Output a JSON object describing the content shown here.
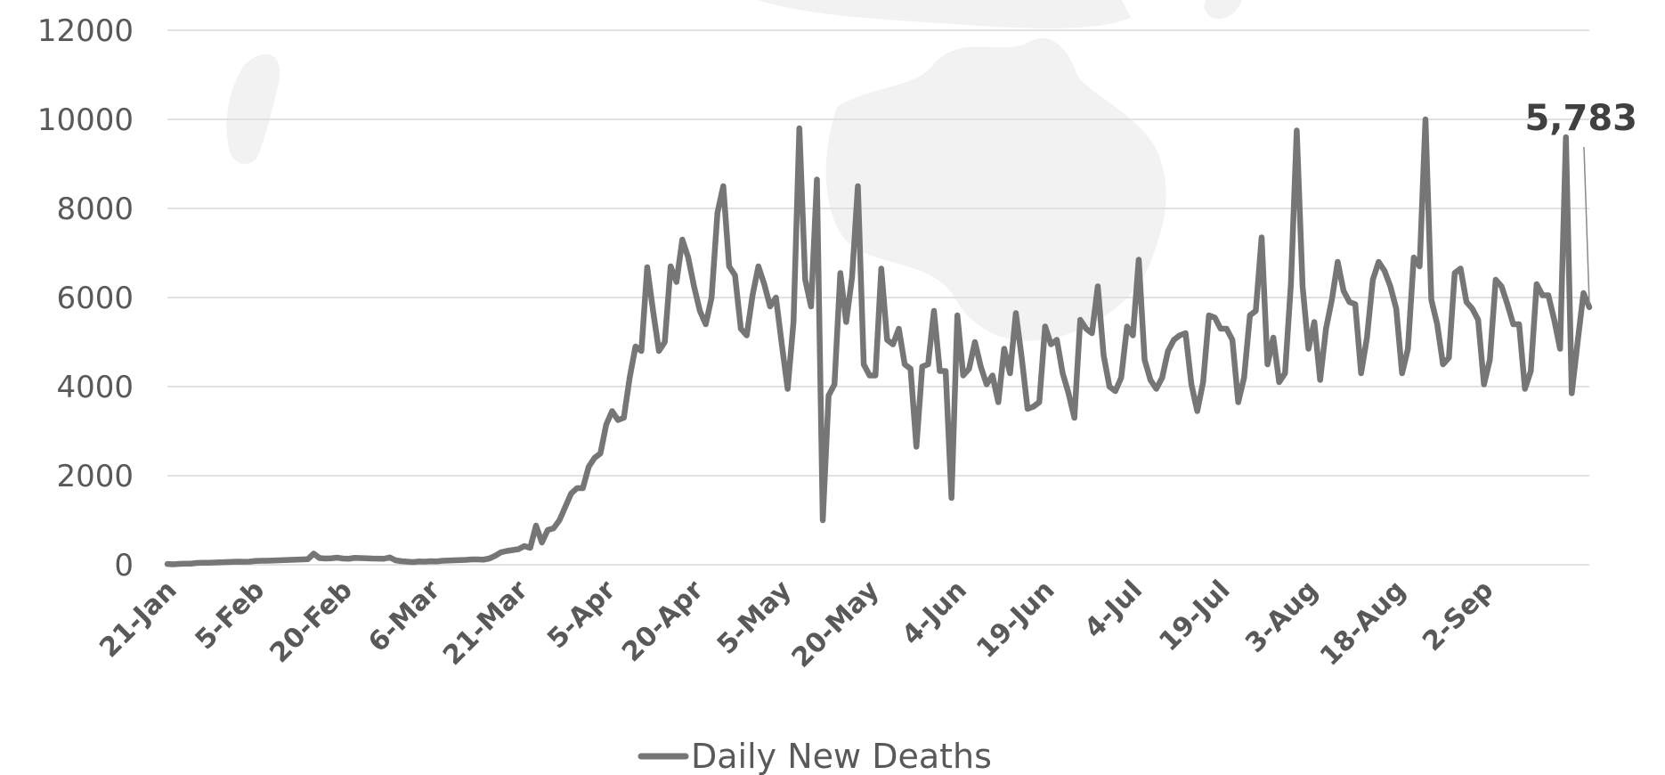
{
  "chart_data": {
    "type": "line",
    "colors": {
      "series": "#767676",
      "grid": "#d9d9d9",
      "text": "#595959",
      "callout": "#404040",
      "background_map": "#f2f2f2"
    },
    "ylim": [
      0,
      12000
    ],
    "yticks": [
      0,
      2000,
      4000,
      6000,
      8000,
      10000,
      12000
    ],
    "ytick_labels": [
      "0",
      "2000",
      "4000",
      "6000",
      "8000",
      "10000",
      "12000"
    ],
    "xlim": [
      "21-Jan",
      "9-Sep"
    ],
    "xtick_labels": [
      "21-Jan",
      "5-Feb",
      "20-Feb",
      "6-Mar",
      "21-Mar",
      "5-Apr",
      "20-Apr",
      "5-May",
      "20-May",
      "4-Jun",
      "19-Jun",
      "4-Jul",
      "19-Jul",
      "3-Aug",
      "18-Aug",
      "2-Sep"
    ],
    "grid": true,
    "legend_position": "bottom-center",
    "annotation": {
      "text": "5,783",
      "x": "9-Sep",
      "y": 5783
    },
    "series": [
      {
        "name": "Daily New Deaths",
        "x_start": "21-Jan",
        "x_step_days": 1,
        "values": [
          17,
          10,
          20,
          25,
          25,
          40,
          45,
          45,
          50,
          55,
          60,
          65,
          70,
          68,
          70,
          85,
          90,
          90,
          95,
          100,
          105,
          110,
          115,
          120,
          125,
          250,
          150,
          140,
          145,
          160,
          140,
          135,
          155,
          150,
          145,
          140,
          138,
          135,
          165,
          100,
          80,
          70,
          60,
          75,
          70,
          80,
          75,
          90,
          95,
          100,
          105,
          110,
          120,
          120,
          115,
          140,
          200,
          280,
          310,
          330,
          350,
          420,
          380,
          880,
          500,
          780,
          820,
          1000,
          1300,
          1600,
          1720,
          1720,
          2200,
          2400,
          2500,
          3150,
          3450,
          3250,
          3300,
          4200,
          4900,
          4800,
          6680,
          5700,
          4800,
          5000,
          6700,
          6350,
          7300,
          6900,
          6250,
          5700,
          5400,
          6000,
          7900,
          8500,
          6700,
          6500,
          5300,
          5150,
          6050,
          6700,
          6300,
          5800,
          6000,
          4950,
          3950,
          5450,
          9800,
          6400,
          5800,
          8650,
          1000,
          3800,
          4050,
          6550,
          5450,
          6450,
          8500,
          4500,
          4250,
          4250,
          6650,
          5050,
          4950,
          5300,
          4500,
          4400,
          2650,
          4450,
          4500,
          5700,
          4350,
          4350,
          1500,
          5600,
          4250,
          4400,
          5000,
          4450,
          4050,
          4250,
          3650,
          4850,
          4300,
          5650,
          4650,
          3500,
          3550,
          3650,
          5350,
          4950,
          5050,
          4300,
          3850,
          3300,
          5500,
          5300,
          5200,
          6250,
          4700,
          4000,
          3900,
          4200,
          5350,
          5150,
          6850,
          4600,
          4150,
          3950,
          4200,
          4800,
          5050,
          5150,
          5200,
          4050,
          3450,
          4100,
          5600,
          5550,
          5300,
          5300,
          5050,
          3650,
          4200,
          5600,
          5700,
          7350,
          4500,
          5100,
          4100,
          4300,
          6300,
          9750,
          6250,
          4850,
          5450,
          4150,
          5300,
          5950,
          6800,
          6150,
          5900,
          5850,
          4300,
          5100,
          6400,
          6800,
          6600,
          6250,
          5750,
          4300,
          4850,
          6900,
          6700,
          10000,
          5950,
          5400,
          4500,
          4650,
          6550,
          6650,
          5900,
          5750,
          5500,
          4050,
          4600,
          6400,
          6250,
          5850,
          5400,
          5400,
          3950,
          4350,
          6300,
          6050,
          6050,
          5500,
          4850,
          9600,
          3850,
          5000,
          6100,
          5783
        ]
      }
    ],
    "legend": {
      "label": "Daily New Deaths"
    }
  }
}
